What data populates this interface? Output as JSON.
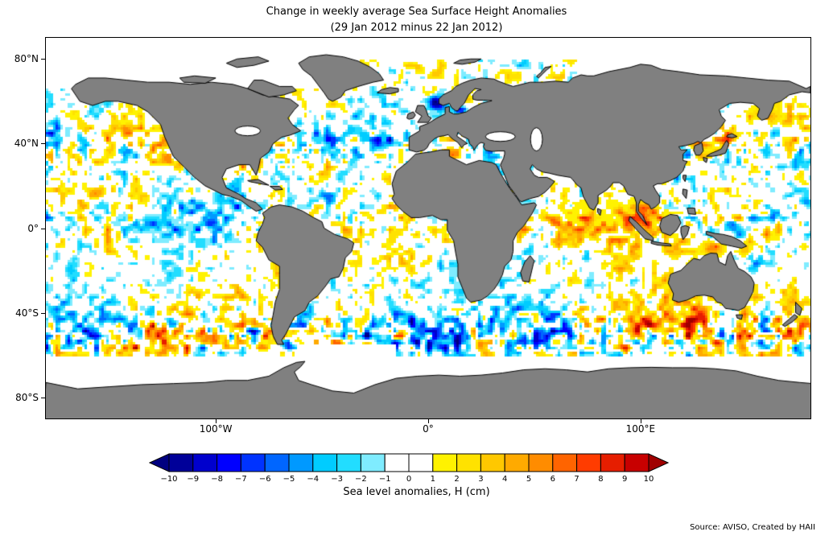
{
  "figure": {
    "title": "Change in weekly average Sea Surface Height Anomalies",
    "subtitle": "(29 Jan 2012 minus 22 Jan 2012)"
  },
  "map": {
    "land_color": "#808080",
    "ocean_color": "#ffffff",
    "coastline_color": "#000000",
    "y_ticks": [
      {
        "label": "80°N",
        "lat": 80
      },
      {
        "label": "40°N",
        "lat": 40
      },
      {
        "label": "0°",
        "lat": 0
      },
      {
        "label": "40°S",
        "lat": -40
      },
      {
        "label": "80°S",
        "lat": -80
      }
    ],
    "x_ticks": [
      {
        "label": "100°W",
        "lon": -100
      },
      {
        "label": "0°",
        "lon": 0
      },
      {
        "label": "100°E",
        "lon": 100
      }
    ]
  },
  "colorbar": {
    "label": "Sea level anomalies, H (cm)",
    "tick_labels": [
      "−10",
      "−9",
      "−8",
      "−7",
      "−6",
      "−5",
      "−4",
      "−3",
      "−2",
      "−1",
      "0",
      "1",
      "2",
      "3",
      "4",
      "5",
      "6",
      "7",
      "8",
      "9",
      "10"
    ],
    "segment_colors": [
      "#000099",
      "#0000cd",
      "#0000ff",
      "#0033ff",
      "#0066ff",
      "#0099ff",
      "#00ccff",
      "#22ddff",
      "#7fecff",
      "#ffffff",
      "#ffffff",
      "#fff200",
      "#ffe200",
      "#ffc800",
      "#ffaa00",
      "#ff8c00",
      "#ff6400",
      "#ff3c00",
      "#e61e00",
      "#c80000"
    ],
    "left_arrow_color": "#000080",
    "right_arrow_color": "#a00000"
  },
  "source": "Source: AVISO, Created by HAII",
  "chart_data": {
    "type": "heatmap",
    "title": "Change in weekly average Sea Surface Height Anomalies",
    "subtitle": "(29 Jan 2012 minus 22 Jan 2012)",
    "colorbar_label": "Sea level anomalies, H (cm)",
    "units": "cm",
    "colorbar_ticks": [
      -10,
      -9,
      -8,
      -7,
      -6,
      -5,
      -4,
      -3,
      -2,
      -1,
      0,
      1,
      2,
      3,
      4,
      5,
      6,
      7,
      8,
      9,
      10
    ],
    "value_range": [
      -10,
      10
    ],
    "extend": "both",
    "x_tick_labels": [
      "100°W",
      "0°",
      "100°E"
    ],
    "y_tick_labels": [
      "80°N",
      "40°N",
      "0°",
      "40°S",
      "80°S"
    ],
    "lon_range": [
      -180,
      180
    ],
    "lat_range": [
      -90,
      90
    ],
    "projection": "equirectangular",
    "land_color": "#808080",
    "source": "Source: AVISO, Created by HAII"
  }
}
